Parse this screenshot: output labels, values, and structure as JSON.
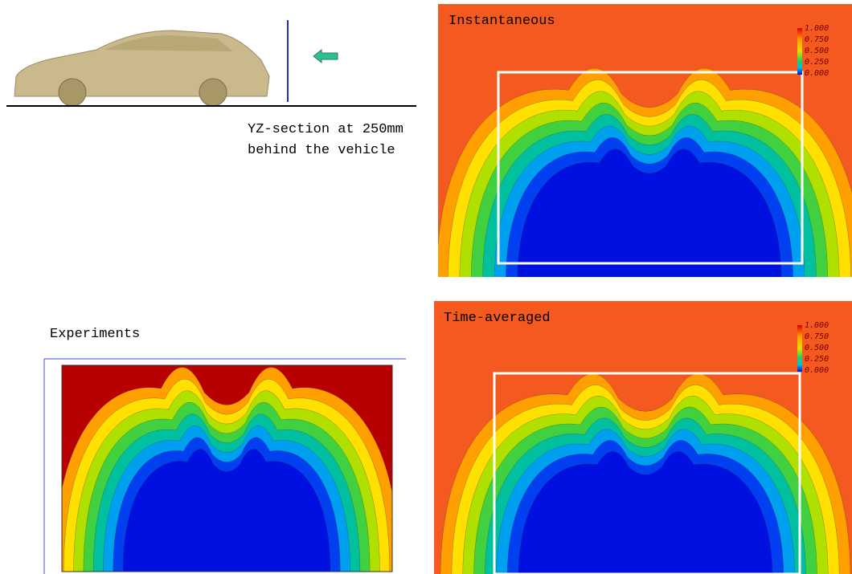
{
  "figure": {
    "section_label": [
      "YZ-section at 250mm",
      "behind the vehicle"
    ],
    "panels": [
      {
        "title": "Instantaneous",
        "scale": [
          "1.000",
          "0.750",
          "0.500",
          "0.250",
          "0.000"
        ]
      },
      {
        "title": "Time-averaged",
        "scale": [
          "1.000",
          "0.750",
          "0.500",
          "0.250",
          "0.000"
        ]
      },
      {
        "title": "Experiments"
      }
    ]
  }
}
